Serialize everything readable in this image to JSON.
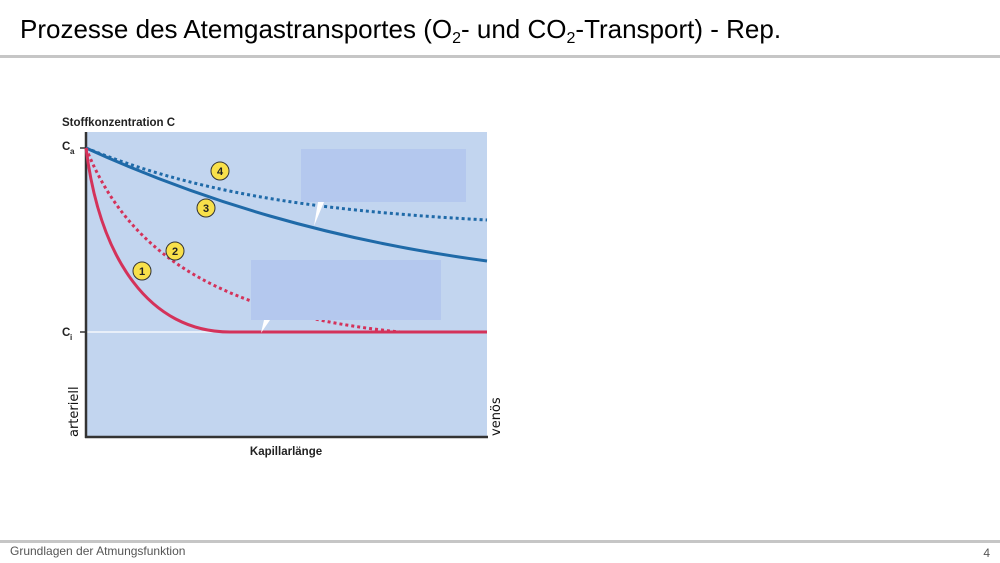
{
  "slide": {
    "title_part1": "Prozesse des Atemgastransportes  (O",
    "title_sub1": "2",
    "title_part2": "- und CO",
    "title_sub2": "2",
    "title_part3": "-Transport)  -  Rep.",
    "footer": "Grundlagen der Atmungsfunktion",
    "page_number": "4"
  },
  "diagram": {
    "ylabel": "Stoffkonzentration C",
    "xlabel": "Kapillarlänge",
    "ca_label": "C",
    "ca_sub": "a",
    "ci_label": "C",
    "ci_sub": "i",
    "left_label": "arteriell",
    "right_label": "venös",
    "markers": [
      "1",
      "2",
      "3",
      "4"
    ],
    "colors": {
      "background": "#c2d5ef",
      "callout": "#b4c8ee",
      "red": "#d4325a",
      "blue": "#1f6aa8",
      "marker": "#f8e04a"
    }
  }
}
